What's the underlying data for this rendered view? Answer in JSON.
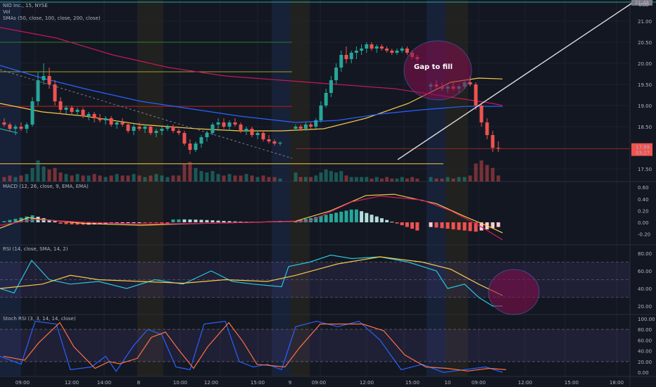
{
  "header": {
    "symbol_line": "NIO Inc., 15, NYSE",
    "vol_label": "Vol",
    "smas_label": "SMAs (50, close, 100, close, 200, close)"
  },
  "axis": {
    "currency": "USD",
    "alert_badge": "21.45"
  },
  "panes": [
    {
      "id": "macd",
      "label": "MACD (12, 26, close, 9, EMA, EMA)",
      "ticks": [
        "0.60",
        "0.40",
        "0.20",
        "0.00",
        "-0.20"
      ],
      "tick_values": [
        0.6,
        0.4,
        0.2,
        0,
        -0.2
      ]
    },
    {
      "id": "rsi",
      "label": "RSI (14, close, SMA, 14, 2)",
      "ticks": [
        "80.00",
        "60.00",
        "40.00",
        "20.00"
      ],
      "tick_values": [
        80,
        60,
        40,
        20
      ]
    },
    {
      "id": "stoch",
      "label": "Stoch RSI (3, 3, 14, 14, close)",
      "ticks": [
        "100.00",
        "80.00",
        "60.00",
        "40.00",
        "20.00",
        "0.00"
      ],
      "tick_values": [
        100,
        80,
        60,
        40,
        20,
        0
      ]
    }
  ],
  "annotation": {
    "gap_label": "Gap to fill"
  },
  "time_axis": {
    "labels": [
      "09:00",
      "12:00",
      "14:00",
      "8",
      "10:00",
      "12:00",
      "15:00",
      "9",
      "09:00",
      "12:00",
      "15:00",
      "10",
      "09:00",
      "12:00",
      "15:00",
      "18:00"
    ]
  },
  "colors": {
    "bg": "#131722",
    "up": "#26a69a",
    "down": "#ef5350",
    "sma50": "#f7c948",
    "sma100": "#2962ff",
    "sma200": "#c2185b",
    "macd": "#f7c948",
    "signal": "#d81b60",
    "rsi": "#26c6da",
    "rsi_ma": "#f7c948",
    "stoch_k": "#2962ff",
    "stoch_d": "#ff7043",
    "session_pre": "#2d2a1e",
    "session_post": "#1c2a48",
    "ellipse": "#880e4f"
  },
  "chart_data": {
    "type": "candlestick",
    "ylim": [
      17.2,
      21.5
    ],
    "price_ticks": [
      "21.00",
      "20.50",
      "20.00",
      "19.50",
      "19.00",
      "18.50",
      "17.50"
    ],
    "price_tick_values": [
      21.0,
      20.5,
      20.0,
      19.5,
      19.0,
      18.5,
      17.5
    ],
    "last_price": "17.99",
    "countdown": "03:27",
    "candles": [
      [
        18.6,
        18.7,
        18.5,
        18.55
      ],
      [
        18.55,
        18.6,
        18.4,
        18.45
      ],
      [
        18.45,
        18.55,
        18.3,
        18.5
      ],
      [
        18.5,
        18.6,
        18.4,
        18.45
      ],
      [
        18.45,
        18.6,
        18.35,
        18.55
      ],
      [
        18.55,
        19.2,
        18.5,
        19.1
      ],
      [
        19.1,
        19.8,
        19.0,
        19.6
      ],
      [
        19.6,
        20.0,
        19.5,
        19.7
      ],
      [
        19.7,
        19.9,
        19.4,
        19.5
      ],
      [
        19.5,
        19.6,
        19.0,
        19.1
      ],
      [
        19.1,
        19.2,
        18.8,
        18.9
      ],
      [
        18.9,
        19.0,
        18.8,
        18.95
      ],
      [
        18.95,
        19.0,
        18.8,
        18.85
      ],
      [
        18.85,
        18.95,
        18.75,
        18.9
      ],
      [
        18.9,
        18.95,
        18.7,
        18.75
      ],
      [
        18.75,
        18.85,
        18.65,
        18.8
      ],
      [
        18.8,
        18.85,
        18.6,
        18.7
      ],
      [
        18.7,
        18.8,
        18.6,
        18.65
      ],
      [
        18.65,
        18.75,
        18.55,
        18.7
      ],
      [
        18.7,
        18.75,
        18.5,
        18.55
      ],
      [
        18.55,
        18.65,
        18.45,
        18.6
      ],
      [
        18.6,
        18.7,
        18.5,
        18.55
      ],
      [
        18.55,
        18.6,
        18.35,
        18.4
      ],
      [
        18.4,
        18.55,
        18.3,
        18.5
      ],
      [
        18.5,
        18.6,
        18.4,
        18.45
      ],
      [
        18.45,
        18.55,
        18.35,
        18.5
      ],
      [
        18.5,
        18.55,
        18.3,
        18.35
      ],
      [
        18.35,
        18.45,
        18.25,
        18.4
      ],
      [
        18.4,
        18.5,
        18.3,
        18.45
      ],
      [
        18.45,
        18.55,
        18.4,
        18.5
      ],
      [
        18.5,
        18.55,
        18.35,
        18.4
      ],
      [
        18.4,
        18.45,
        18.3,
        18.35
      ],
      [
        18.35,
        18.4,
        18.05,
        18.1
      ],
      [
        18.1,
        18.2,
        17.85,
        17.95
      ],
      [
        17.95,
        18.15,
        17.9,
        18.1
      ],
      [
        18.1,
        18.3,
        18.0,
        18.25
      ],
      [
        18.25,
        18.4,
        18.15,
        18.35
      ],
      [
        18.35,
        18.6,
        18.3,
        18.55
      ],
      [
        18.55,
        18.7,
        18.4,
        18.6
      ],
      [
        18.6,
        18.7,
        18.45,
        18.5
      ],
      [
        18.5,
        18.65,
        18.4,
        18.6
      ],
      [
        18.6,
        18.7,
        18.5,
        18.55
      ],
      [
        18.55,
        18.6,
        18.35,
        18.4
      ],
      [
        18.4,
        18.5,
        18.3,
        18.45
      ],
      [
        18.45,
        18.5,
        18.25,
        18.3
      ],
      [
        18.3,
        18.4,
        18.2,
        18.35
      ],
      [
        18.35,
        18.4,
        18.15,
        18.2
      ],
      [
        18.2,
        18.3,
        18.1,
        18.15
      ],
      [
        18.15,
        18.2,
        18.05,
        18.1
      ],
      [
        18.1,
        18.15,
        18.05,
        18.12
      ],
      [
        18.45,
        18.55,
        18.4,
        18.5
      ],
      [
        18.5,
        18.55,
        18.4,
        18.45
      ],
      [
        18.45,
        18.6,
        18.4,
        18.55
      ],
      [
        18.55,
        18.6,
        18.45,
        18.5
      ],
      [
        18.5,
        18.7,
        18.45,
        18.65
      ],
      [
        18.65,
        19.1,
        18.6,
        19.0
      ],
      [
        19.0,
        19.4,
        18.95,
        19.3
      ],
      [
        19.3,
        19.7,
        19.2,
        19.6
      ],
      [
        19.6,
        20.0,
        19.5,
        19.9
      ],
      [
        19.9,
        20.3,
        19.8,
        20.2
      ],
      [
        20.2,
        20.4,
        20.0,
        20.1
      ],
      [
        20.1,
        20.3,
        20.0,
        20.25
      ],
      [
        20.25,
        20.4,
        20.1,
        20.3
      ],
      [
        20.3,
        20.45,
        20.2,
        20.35
      ],
      [
        20.35,
        20.5,
        20.25,
        20.45
      ],
      [
        20.45,
        20.5,
        20.3,
        20.35
      ],
      [
        20.35,
        20.45,
        20.25,
        20.4
      ],
      [
        20.4,
        20.45,
        20.3,
        20.35
      ],
      [
        20.35,
        20.4,
        20.25,
        20.3
      ],
      [
        20.3,
        20.35,
        20.2,
        20.25
      ],
      [
        20.25,
        20.35,
        20.2,
        20.3
      ],
      [
        20.3,
        20.4,
        20.25,
        20.35
      ],
      [
        20.35,
        20.4,
        20.2,
        20.25
      ],
      [
        20.25,
        20.3,
        20.1,
        20.15
      ],
      [
        20.15,
        20.2,
        20.05,
        20.1
      ],
      [
        19.45,
        19.55,
        19.35,
        19.5
      ],
      [
        19.5,
        19.6,
        19.4,
        19.45
      ],
      [
        19.45,
        19.55,
        19.35,
        19.4
      ],
      [
        19.4,
        19.5,
        19.3,
        19.45
      ],
      [
        19.45,
        19.55,
        19.35,
        19.4
      ],
      [
        19.4,
        19.5,
        19.3,
        19.45
      ],
      [
        19.45,
        19.6,
        19.4,
        19.55
      ],
      [
        19.55,
        19.7,
        19.45,
        19.5
      ],
      [
        19.5,
        19.55,
        18.9,
        19.0
      ],
      [
        19.0,
        19.05,
        18.5,
        18.6
      ],
      [
        18.6,
        18.7,
        18.2,
        18.3
      ],
      [
        18.3,
        18.4,
        17.9,
        18.0
      ],
      [
        18.0,
        18.15,
        17.9,
        17.99
      ]
    ],
    "volume": [
      3,
      4,
      3,
      4,
      5,
      9,
      14,
      10,
      8,
      9,
      6,
      5,
      4,
      5,
      4,
      4,
      5,
      4,
      3,
      4,
      5,
      4,
      4,
      5,
      4,
      3,
      4,
      5,
      4,
      3,
      4,
      4,
      12,
      13,
      9,
      7,
      6,
      7,
      5,
      4,
      5,
      4,
      4,
      5,
      4,
      3,
      4,
      3,
      3,
      2,
      6,
      3,
      3,
      3,
      4,
      6,
      8,
      7,
      6,
      7,
      4,
      3,
      3,
      3,
      3,
      2,
      3,
      2,
      3,
      2,
      2,
      3,
      2,
      3,
      2,
      3,
      2,
      2,
      3,
      2,
      3,
      3,
      4,
      12,
      14,
      11,
      9,
      4
    ],
    "sma_levels": {
      "sma50_start": 19.05,
      "sma100_start": 19.95,
      "sma200_start": 20.85
    }
  }
}
